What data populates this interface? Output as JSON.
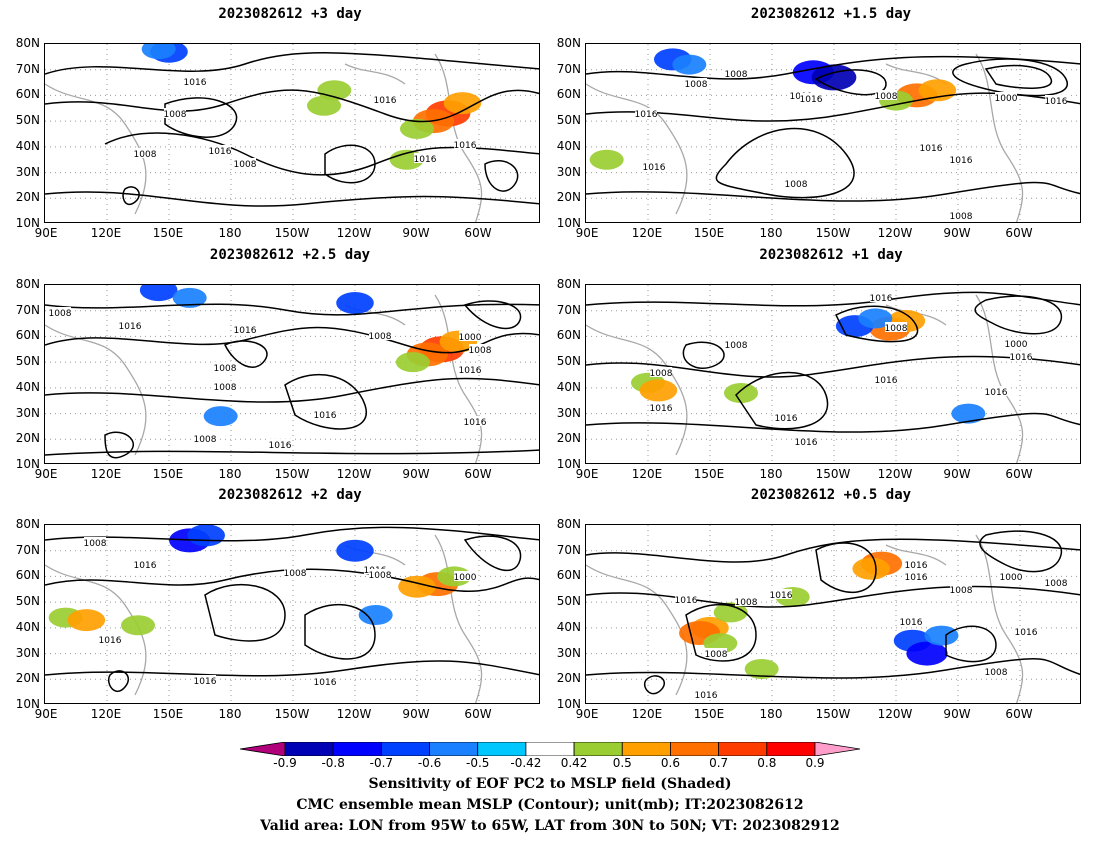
{
  "lat_labels": [
    "80N",
    "70N",
    "60N",
    "50N",
    "40N",
    "30N",
    "20N",
    "10N"
  ],
  "lon_labels": [
    "90E",
    "120E",
    "150E",
    "180",
    "150W",
    "120W",
    "90W",
    "60W"
  ],
  "panels": [
    {
      "title": "2023082612 +3 day",
      "contour_labels": [
        "1008",
        "1016",
        "1008",
        "1016",
        "1016",
        "1016",
        "1008",
        "1016"
      ],
      "shading": [
        {
          "lon": 285,
          "lat": 53,
          "value": 0.8
        },
        {
          "lon": 278,
          "lat": 50,
          "value": 0.7
        },
        {
          "lon": 292,
          "lat": 57,
          "value": 0.6
        },
        {
          "lon": 270,
          "lat": 47,
          "value": 0.5
        },
        {
          "lon": 150,
          "lat": 77,
          "value": -0.6
        },
        {
          "lon": 145,
          "lat": 78,
          "value": -0.5
        },
        {
          "lon": 230,
          "lat": 62,
          "value": 0.5
        },
        {
          "lon": 225,
          "lat": 56,
          "value": 0.5
        },
        {
          "lon": 265,
          "lat": 35,
          "value": 0.5
        }
      ]
    },
    {
      "title": "2023082612 +1.5 day",
      "contour_labels": [
        "1008",
        "1016",
        "1008",
        "1000",
        "1016",
        "1008",
        "1000",
        "1016",
        "1016",
        "1016",
        "1008",
        "1016",
        "1008"
      ],
      "shading": [
        {
          "lon": 250,
          "lat": 60,
          "value": 0.7
        },
        {
          "lon": 260,
          "lat": 62,
          "value": 0.6
        },
        {
          "lon": 240,
          "lat": 58,
          "value": 0.5
        },
        {
          "lon": 200,
          "lat": 69,
          "value": -0.7
        },
        {
          "lon": 210,
          "lat": 67,
          "value": -0.8
        },
        {
          "lon": 132,
          "lat": 74,
          "value": -0.6
        },
        {
          "lon": 140,
          "lat": 72,
          "value": -0.5
        },
        {
          "lon": 100,
          "lat": 35,
          "value": 0.5
        }
      ]
    },
    {
      "title": "2023082612 +2.5 day",
      "contour_labels": [
        "1008",
        "1016",
        "1016",
        "1008",
        "1000",
        "1008",
        "1008",
        "1016",
        "1016",
        "1008",
        "1008",
        "1016",
        "1016",
        "1008"
      ],
      "shading": [
        {
          "lon": 282,
          "lat": 55,
          "value": 0.8
        },
        {
          "lon": 275,
          "lat": 53,
          "value": 0.7
        },
        {
          "lon": 290,
          "lat": 58,
          "value": 0.6
        },
        {
          "lon": 268,
          "lat": 50,
          "value": 0.5
        },
        {
          "lon": 145,
          "lat": 78,
          "value": -0.6
        },
        {
          "lon": 160,
          "lat": 75,
          "value": -0.5
        },
        {
          "lon": 240,
          "lat": 73,
          "value": -0.6
        },
        {
          "lon": 175,
          "lat": 29,
          "value": -0.5
        }
      ]
    },
    {
      "title": "2023082612 +1 day",
      "contour_labels": [
        "1016",
        "1008",
        "1008",
        "1000",
        "1016",
        "1016",
        "1016",
        "1008",
        "1016",
        "1016",
        "1016"
      ],
      "shading": [
        {
          "lon": 237,
          "lat": 63,
          "value": 0.7
        },
        {
          "lon": 245,
          "lat": 66,
          "value": 0.6
        },
        {
          "lon": 120,
          "lat": 42,
          "value": 0.5
        },
        {
          "lon": 125,
          "lat": 39,
          "value": 0.6
        },
        {
          "lon": 165,
          "lat": 38,
          "value": 0.5
        },
        {
          "lon": 220,
          "lat": 64,
          "value": -0.6
        },
        {
          "lon": 275,
          "lat": 30,
          "value": -0.5
        },
        {
          "lon": 230,
          "lat": 67,
          "value": -0.5
        }
      ]
    },
    {
      "title": "2023082612 +2 day",
      "contour_labels": [
        "1008",
        "1016",
        "1016",
        "1008",
        "1008",
        "1000",
        "1016",
        "1016",
        "1016"
      ],
      "shading": [
        {
          "lon": 280,
          "lat": 57,
          "value": 0.7
        },
        {
          "lon": 270,
          "lat": 56,
          "value": 0.6
        },
        {
          "lon": 288,
          "lat": 60,
          "value": 0.5
        },
        {
          "lon": 100,
          "lat": 44,
          "value": 0.5
        },
        {
          "lon": 110,
          "lat": 43,
          "value": 0.6
        },
        {
          "lon": 135,
          "lat": 41,
          "value": 0.5
        },
        {
          "lon": 160,
          "lat": 74,
          "value": -0.7
        },
        {
          "lon": 168,
          "lat": 76,
          "value": -0.6
        },
        {
          "lon": 240,
          "lat": 70,
          "value": -0.6
        },
        {
          "lon": 250,
          "lat": 45,
          "value": -0.5
        }
      ]
    },
    {
      "title": "2023082612 +0.5 day",
      "contour_labels": [
        "1016",
        "1008",
        "1008",
        "1016",
        "1016",
        "1016",
        "1000",
        "1008",
        "1016",
        "1016",
        "1008",
        "1016",
        "1008"
      ],
      "shading": [
        {
          "lon": 233,
          "lat": 65,
          "value": 0.7
        },
        {
          "lon": 228,
          "lat": 63,
          "value": 0.6
        },
        {
          "lon": 150,
          "lat": 40,
          "value": 0.6
        },
        {
          "lon": 145,
          "lat": 38,
          "value": 0.7
        },
        {
          "lon": 155,
          "lat": 34,
          "value": 0.5
        },
        {
          "lon": 160,
          "lat": 46,
          "value": 0.5
        },
        {
          "lon": 190,
          "lat": 52,
          "value": 0.5
        },
        {
          "lon": 248,
          "lat": 35,
          "value": -0.6
        },
        {
          "lon": 255,
          "lat": 30,
          "value": -0.7
        },
        {
          "lon": 262,
          "lat": 37,
          "value": -0.5
        },
        {
          "lon": 175,
          "lat": 24,
          "value": 0.5
        }
      ]
    }
  ],
  "colorbar": {
    "ticks": [
      "-0.9",
      "-0.8",
      "-0.7",
      "-0.6",
      "-0.5",
      "-0.42",
      "0.42",
      "0.5",
      "0.6",
      "0.7",
      "0.8",
      "0.9"
    ],
    "colors": [
      "#b0007a",
      "#0000b4",
      "#0000ff",
      "#0040ff",
      "#1a80ff",
      "#00c8ff",
      "#ffffff",
      "#9acd32",
      "#ffa000",
      "#ff7000",
      "#ff3c00",
      "#ff0000",
      "#ff9ecb"
    ]
  },
  "caption": {
    "line1": "Sensitivity of EOF PC2 to MSLP field (Shaded)",
    "line2": "CMC ensemble mean MSLP (Contour); unit(mb); IT:2023082612",
    "line3": "Valid area: LON from 95W to 65W, LAT from 30N to 50N; VT: 2023082912"
  }
}
